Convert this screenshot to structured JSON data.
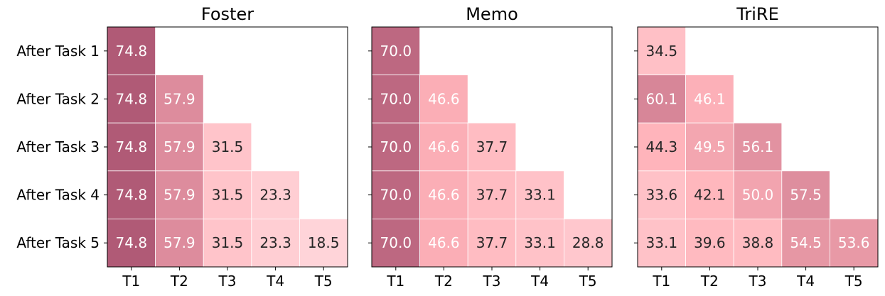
{
  "chart_data": [
    {
      "type": "heatmap",
      "title": "Foster",
      "x_categories": [
        "T1",
        "T2",
        "T3",
        "T4",
        "T5"
      ],
      "y_categories": [
        "After Task 1",
        "After Task 2",
        "After Task 3",
        "After Task 4",
        "After Task 5"
      ],
      "values": [
        [
          74.8,
          null,
          null,
          null,
          null
        ],
        [
          74.8,
          57.9,
          null,
          null,
          null
        ],
        [
          74.8,
          57.9,
          31.5,
          null,
          null
        ],
        [
          74.8,
          57.9,
          31.5,
          23.3,
          null
        ],
        [
          74.8,
          57.9,
          31.5,
          23.3,
          18.5
        ]
      ],
      "colormap": "white-pink-magenta",
      "grid": false
    },
    {
      "type": "heatmap",
      "title": "Memo",
      "x_categories": [
        "T1",
        "T2",
        "T3",
        "T4",
        "T5"
      ],
      "y_categories": [
        "After Task 1",
        "After Task 2",
        "After Task 3",
        "After Task 4",
        "After Task 5"
      ],
      "values": [
        [
          70.0,
          null,
          null,
          null,
          null
        ],
        [
          70.0,
          46.6,
          null,
          null,
          null
        ],
        [
          70.0,
          46.6,
          37.7,
          null,
          null
        ],
        [
          70.0,
          46.6,
          37.7,
          33.1,
          null
        ],
        [
          70.0,
          46.6,
          37.7,
          33.1,
          28.8
        ]
      ],
      "colormap": "white-pink-magenta",
      "grid": false
    },
    {
      "type": "heatmap",
      "title": "TriRE",
      "x_categories": [
        "T1",
        "T2",
        "T3",
        "T4",
        "T5"
      ],
      "y_categories": [
        "After Task 1",
        "After Task 2",
        "After Task 3",
        "After Task 4",
        "After Task 5"
      ],
      "values": [
        [
          34.5,
          null,
          null,
          null,
          null
        ],
        [
          60.1,
          46.1,
          null,
          null,
          null
        ],
        [
          44.3,
          49.5,
          56.1,
          null,
          null
        ],
        [
          33.6,
          42.1,
          50.0,
          57.5,
          null
        ],
        [
          33.1,
          39.6,
          38.8,
          54.5,
          53.6
        ]
      ],
      "colormap": "white-pink-magenta",
      "grid": false
    }
  ],
  "colors": {
    "low": "#ffdce0",
    "mid": "#ffb3ba",
    "high": "#a8506f",
    "label_dark": "#262626",
    "label_light": "#ffffff",
    "frame": "#000000",
    "cell_border": "#ffffff"
  }
}
